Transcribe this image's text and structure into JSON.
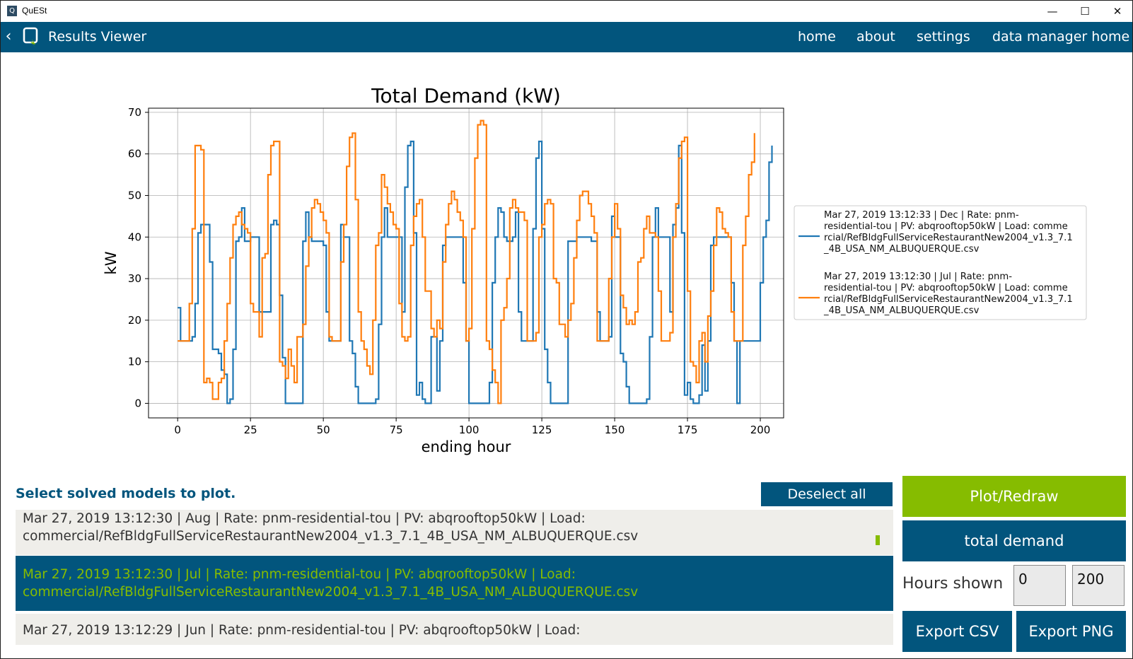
{
  "window": {
    "title": "QuESt",
    "icon_letter": "Q",
    "minimize": "—",
    "maximize": "☐",
    "close": "✕"
  },
  "navbar": {
    "back_glyph": "‹",
    "title": "Results Viewer",
    "links": [
      "home",
      "about",
      "settings",
      "data manager home"
    ]
  },
  "chart_data": {
    "type": "line",
    "title": "Total Demand (kW)",
    "xlabel": "ending hour",
    "ylabel": "kW",
    "xlim": [
      -10,
      208
    ],
    "ylim": [
      -3.5,
      71
    ],
    "xticks": [
      0,
      25,
      50,
      75,
      100,
      125,
      150,
      175,
      200
    ],
    "yticks": [
      0,
      10,
      20,
      30,
      40,
      50,
      60,
      70
    ],
    "grid": true,
    "legend_position": "right",
    "series": [
      {
        "name": "Mar 27, 2019 13:12:33 | Dec | Rate: pnm-residential-tou | PV: abqrooftop50kW | Load: commercial/RefBldgFullServiceRestaurantNew2004_v1.3_7.1_4B_USA_NM_ALBUQUERQUE.csv",
        "legend_lines": [
          "Mar 27, 2019 13:12:33 | Dec | Rate: pnm-",
          "residential-tou | PV: abqrooftop50kW | Load: comme",
          "rcial/RefBldgFullServiceRestaurantNew2004_v1.3_7.1",
          "_4B_USA_NM_ALBUQUERQUE.csv"
        ],
        "color": "#1f77b4",
        "y": [
          23,
          15,
          15,
          15,
          15,
          16,
          24,
          41,
          43,
          43,
          43,
          34,
          13,
          13,
          12,
          8,
          7,
          0,
          1,
          13,
          39,
          40,
          47,
          39,
          39,
          40,
          40,
          40,
          22,
          22,
          22,
          22,
          43,
          44,
          43,
          26,
          11,
          0,
          0,
          0,
          0,
          0,
          0,
          39,
          46,
          40,
          39,
          39,
          39,
          39,
          38,
          22,
          15,
          15,
          15,
          15,
          43,
          40,
          40,
          15,
          12,
          4,
          0,
          0,
          0,
          0,
          0,
          0,
          1,
          19,
          40,
          47,
          40,
          40,
          40,
          40,
          40,
          22,
          52,
          62,
          63,
          41,
          2,
          5,
          1,
          0,
          0,
          16,
          16,
          3,
          15,
          38,
          40,
          40,
          40,
          40,
          40,
          40,
          29,
          15,
          0,
          0,
          0,
          0,
          0,
          0,
          0,
          5,
          29,
          40,
          47,
          46,
          40,
          39,
          39,
          40,
          46,
          22,
          15,
          15,
          15,
          15,
          42,
          59,
          63,
          42,
          13,
          5,
          0,
          0,
          0,
          0,
          0,
          0,
          39,
          39,
          39,
          40,
          40,
          40,
          40,
          40,
          39,
          39,
          22,
          15,
          15,
          15,
          16,
          45,
          40,
          40,
          12,
          10,
          4,
          0,
          0,
          0,
          0,
          0,
          0,
          1,
          16,
          40,
          47,
          40,
          40,
          40,
          40,
          22,
          43,
          47,
          62,
          41,
          2,
          5,
          1,
          0,
          0,
          2,
          14,
          3,
          15,
          38,
          40,
          40,
          40,
          40,
          40,
          40,
          29,
          15,
          0,
          15,
          15,
          15,
          15,
          15,
          15,
          15,
          29,
          40,
          44,
          58,
          62
        ]
      },
      {
        "name": "Mar 27, 2019 13:12:30 | Jul | Rate: pnm-residential-tou | PV: abqrooftop50kW | Load: commercial/RefBldgFullServiceRestaurantNew2004_v1.3_7.1_4B_USA_NM_ALBUQUERQUE.csv",
        "legend_lines": [
          "Mar 27, 2019 13:12:30 | Jul | Rate: pnm-",
          "residential-tou | PV: abqrooftop50kW | Load: comme",
          "rcial/RefBldgFullServiceRestaurantNew2004_v1.3_7.1",
          "_4B_USA_NM_ALBUQUERQUE.csv"
        ],
        "color": "#ff7f0e",
        "y": [
          15,
          15,
          15,
          15,
          24,
          42,
          62,
          62,
          61,
          5,
          6,
          5,
          1,
          1,
          5,
          6,
          15,
          24,
          35,
          43,
          45,
          46,
          43,
          42,
          41,
          24,
          22,
          22,
          16,
          35,
          36,
          55,
          62,
          63,
          63,
          10,
          9,
          6,
          13,
          9,
          5,
          16,
          16,
          19,
          33,
          40,
          47,
          49,
          48,
          46,
          44,
          41,
          16,
          15,
          15,
          15,
          34,
          43,
          57,
          64,
          65,
          49,
          22,
          15,
          13,
          9,
          7,
          20,
          38,
          41,
          55,
          52,
          48,
          46,
          43,
          42,
          24,
          16,
          15,
          16,
          38,
          45,
          48,
          49,
          40,
          27,
          27,
          18,
          16,
          20,
          18,
          34,
          43,
          48,
          51,
          49,
          46,
          44,
          40,
          15,
          18,
          42,
          59,
          67,
          68,
          67,
          15,
          13,
          8,
          5,
          0,
          20,
          23,
          30,
          47,
          49,
          47,
          46,
          46,
          44,
          15,
          15,
          15,
          17,
          40,
          43,
          48,
          49,
          48,
          30,
          29,
          19,
          19,
          16,
          20,
          24,
          35,
          44,
          50,
          51,
          51,
          48,
          45,
          41,
          15,
          15,
          15,
          15,
          30,
          40,
          48,
          42,
          26,
          23,
          19,
          20,
          19,
          22,
          34,
          35,
          42,
          45,
          41,
          41,
          40,
          27,
          15,
          15,
          15,
          17,
          40,
          48,
          59,
          63,
          64,
          27,
          10,
          9,
          5,
          15,
          17,
          10,
          21,
          27,
          38,
          47,
          46,
          42,
          41,
          40,
          22,
          15,
          15,
          15,
          38,
          45,
          55,
          58,
          65
        ]
      }
    ]
  },
  "list": {
    "prompt": "Select solved models to plot.",
    "deselect_label": "Deselect all",
    "items": [
      {
        "line1": "Mar 27, 2019 13:12:30 | Aug | Rate: pnm-residential-tou | PV: abqrooftop50kW | Load:",
        "line2": "commercial/RefBldgFullServiceRestaurantNew2004_v1.3_7.1_4B_USA_NM_ALBUQUERQUE.csv",
        "selected": false
      },
      {
        "line1": "Mar 27, 2019 13:12:30 | Jul | Rate: pnm-residential-tou | PV: abqrooftop50kW | Load:",
        "line2": "commercial/RefBldgFullServiceRestaurantNew2004_v1.3_7.1_4B_USA_NM_ALBUQUERQUE.csv",
        "selected": true
      },
      {
        "line1": "Mar 27, 2019 13:12:29 | Jun | Rate: pnm-residential-tou | PV: abqrooftop50kW | Load:",
        "line2": "",
        "selected": false
      }
    ]
  },
  "controls": {
    "plot_label": "Plot/Redraw",
    "measure_label": "total demand",
    "hours_label": "Hours shown",
    "hours_start": "0",
    "hours_end": "200",
    "export_csv_label": "Export CSV",
    "export_png_label": "Export PNG"
  },
  "colors": {
    "navbar": "#02557d",
    "accent_green": "#86bc00",
    "series1": "#1f77b4",
    "series2": "#ff7f0e"
  }
}
